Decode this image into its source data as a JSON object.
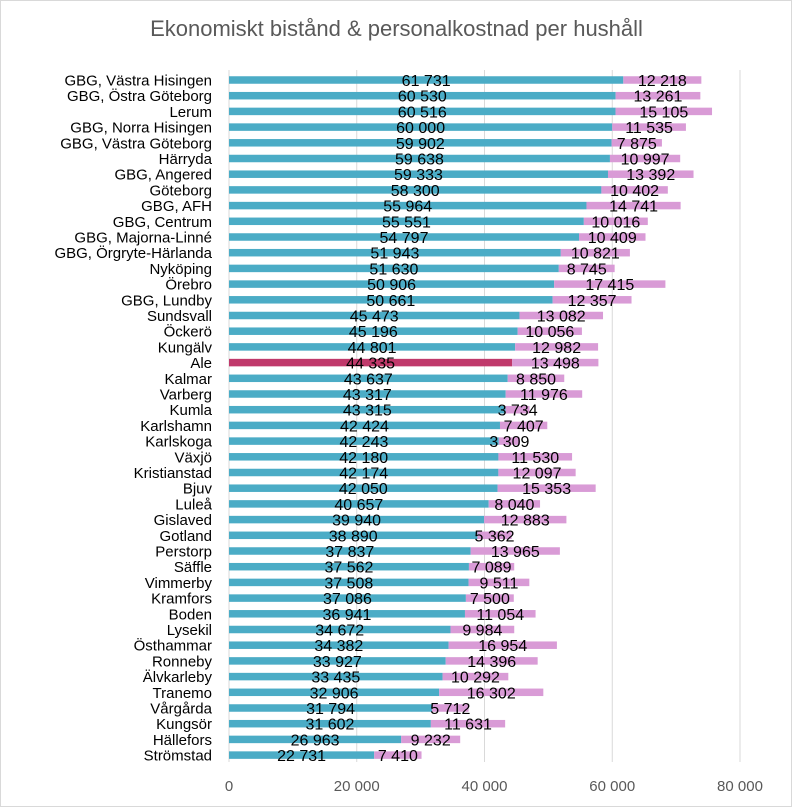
{
  "chart_data": {
    "type": "bar",
    "orientation": "horizontal",
    "stacked": true,
    "title": "Ekonomiskt bistånd & personalkostnad per hushåll",
    "xlim": [
      0,
      80000
    ],
    "x_ticks": [
      0,
      20000,
      40000,
      60000,
      80000
    ],
    "x_tick_labels": [
      "0",
      "20 000",
      "40 000",
      "60 000",
      "80 000"
    ],
    "grid": true,
    "legend": "none",
    "colors": {
      "series1": "#4bacc6",
      "series2": "#d99bd6",
      "highlight": "#c0396b",
      "grid": "#d9d9d9",
      "text": "#000000",
      "axis_text": "#595959",
      "title": "#595959"
    },
    "highlight_category": "Ale",
    "categories": [
      "GBG, Västra Hisingen",
      "GBG, Östra Göteborg",
      "Lerum",
      "GBG, Norra Hisingen",
      "GBG, Västra Göteborg",
      "Härryda",
      "GBG, Angered",
      "Göteborg",
      "GBG, AFH",
      "GBG, Centrum",
      "GBG, Majorna-Linné",
      "GBG, Örgryte-Härlanda",
      "Nyköping",
      "Örebro",
      "GBG, Lundby",
      "Sundsvall",
      "Öckerö",
      "Kungälv",
      "Ale",
      "Kalmar",
      "Varberg",
      "Kumla",
      "Karlshamn",
      "Karlskoga",
      "Växjö",
      "Kristianstad",
      "Bjuv",
      "Luleå",
      "Gislaved",
      "Gotland",
      "Perstorp",
      "Säffle",
      "Vimmerby",
      "Kramfors",
      "Boden",
      "Lysekil",
      "Östhammar",
      "Ronneby",
      "Älvkarleby",
      "Tranemo",
      "Vårgårda",
      "Kungsör",
      "Hällefors",
      "Strömstad"
    ],
    "series": [
      {
        "values": [
          61731,
          60530,
          60516,
          60000,
          59902,
          59638,
          59333,
          58300,
          55964,
          55551,
          54797,
          51943,
          51630,
          50906,
          50661,
          45473,
          45196,
          44801,
          44335,
          43637,
          43317,
          43315,
          42424,
          42243,
          42180,
          42174,
          42050,
          40657,
          39940,
          38890,
          37837,
          37562,
          37508,
          37086,
          36941,
          34672,
          34382,
          33927,
          33435,
          32906,
          31794,
          31602,
          26963,
          22731
        ],
        "labels": [
          "61 731",
          "60 530",
          "60 516",
          "60 000",
          "59 902",
          "59 638",
          "59 333",
          "58 300",
          "55 964",
          "55 551",
          "54 797",
          "51 943",
          "51 630",
          "50 906",
          "50 661",
          "45 473",
          "45 196",
          "44 801",
          "44 335",
          "43 637",
          "43 317",
          "43 315",
          "42 424",
          "42 243",
          "42 180",
          "42 174",
          "42 050",
          "40 657",
          "39 940",
          "38 890",
          "37 837",
          "37 562",
          "37 508",
          "37 086",
          "36 941",
          "34 672",
          "34 382",
          "33 927",
          "33 435",
          "32 906",
          "31 794",
          "31 602",
          "26 963",
          "22 731"
        ]
      },
      {
        "values": [
          12218,
          13261,
          15105,
          11535,
          7875,
          10997,
          13392,
          10402,
          14741,
          10016,
          10409,
          10821,
          8745,
          17415,
          12357,
          13082,
          10056,
          12982,
          13498,
          8850,
          11976,
          3734,
          7407,
          3309,
          11530,
          12097,
          15353,
          8040,
          12883,
          5362,
          13965,
          7089,
          9511,
          7500,
          11054,
          9984,
          16954,
          14396,
          10292,
          16302,
          5712,
          11631,
          9232,
          7410
        ],
        "labels": [
          "12 218",
          "13 261",
          "15 105",
          "11 535",
          "7 875",
          "10 997",
          "13 392",
          "10 402",
          "14 741",
          "10 016",
          "10 409",
          "10 821",
          "8 745",
          "17 415",
          "12 357",
          "13 082",
          "10 056",
          "12 982",
          "13 498",
          "8 850",
          "11 976",
          "3 734",
          "7 407",
          "3 309",
          "11 530",
          "12 097",
          "15 353",
          "8 040",
          "12 883",
          "5 362",
          "13 965",
          "7 089",
          "9 511",
          "7 500",
          "11 054",
          "9 984",
          "16 954",
          "14 396",
          "10 292",
          "16 302",
          "5 712",
          "11 631",
          "9 232",
          "7 410"
        ]
      }
    ]
  }
}
